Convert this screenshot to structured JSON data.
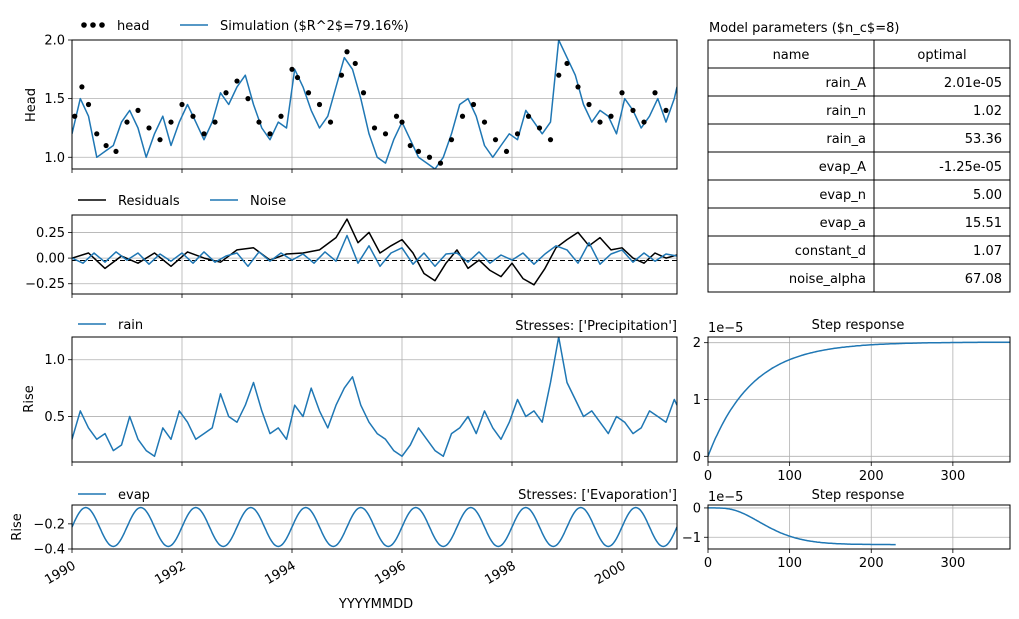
{
  "chart_data": [
    {
      "id": "head",
      "type": "line",
      "ylabel": "Head",
      "xlim": [
        1990,
        2001
      ],
      "ylim": [
        0.9,
        2.0
      ],
      "yticks": [
        1.0,
        1.5,
        2.0
      ],
      "ytick_labels": [
        "1.0",
        "1.5",
        "2.0"
      ],
      "grid": true,
      "legend": "top-left",
      "legend_entries": [
        "head",
        "Simulation ($R^2$=79.16%)"
      ],
      "series": [
        {
          "name": "head",
          "style": "scatter",
          "color": "#000000",
          "x": [
            1990.05,
            1990.18,
            1990.3,
            1990.45,
            1990.62,
            1990.8,
            1991.0,
            1991.2,
            1991.4,
            1991.6,
            1991.8,
            1992.0,
            1992.2,
            1992.4,
            1992.6,
            1992.8,
            1993.0,
            1993.2,
            1993.4,
            1993.6,
            1993.8,
            1994.0,
            1994.1,
            1994.3,
            1994.5,
            1994.7,
            1994.9,
            1995.0,
            1995.15,
            1995.3,
            1995.5,
            1995.7,
            1995.9,
            1996.0,
            1996.15,
            1996.3,
            1996.5,
            1996.7,
            1996.9,
            1997.1,
            1997.3,
            1997.5,
            1997.7,
            1997.9,
            1998.1,
            1998.3,
            1998.5,
            1998.7,
            1998.85,
            1999.0,
            1999.2,
            1999.4,
            1999.6,
            1999.8,
            2000.0,
            2000.2,
            2000.4,
            2000.6,
            2000.8
          ],
          "y": [
            1.35,
            1.6,
            1.45,
            1.2,
            1.1,
            1.05,
            1.3,
            1.4,
            1.25,
            1.15,
            1.3,
            1.45,
            1.35,
            1.2,
            1.3,
            1.55,
            1.65,
            1.5,
            1.3,
            1.2,
            1.35,
            1.75,
            1.68,
            1.55,
            1.45,
            1.3,
            1.7,
            1.9,
            1.8,
            1.55,
            1.25,
            1.2,
            1.35,
            1.3,
            1.1,
            1.05,
            1.0,
            0.95,
            1.15,
            1.35,
            1.45,
            1.3,
            1.15,
            1.05,
            1.2,
            1.35,
            1.25,
            1.15,
            1.7,
            1.8,
            1.6,
            1.45,
            1.3,
            1.35,
            1.55,
            1.4,
            1.3,
            1.55,
            1.4
          ]
        },
        {
          "name": "Simulation ($R^2$=79.16%)",
          "style": "line",
          "color": "#1f77b4",
          "x": [
            1990.0,
            1990.15,
            1990.3,
            1990.45,
            1990.6,
            1990.75,
            1990.9,
            1991.05,
            1991.2,
            1991.35,
            1991.5,
            1991.65,
            1991.8,
            1991.95,
            1992.1,
            1992.25,
            1992.4,
            1992.55,
            1992.7,
            1992.85,
            1993.0,
            1993.15,
            1993.3,
            1993.45,
            1993.6,
            1993.75,
            1993.9,
            1994.05,
            1994.2,
            1994.35,
            1994.5,
            1994.65,
            1994.8,
            1994.95,
            1995.1,
            1995.25,
            1995.4,
            1995.55,
            1995.7,
            1995.85,
            1996.0,
            1996.15,
            1996.3,
            1996.45,
            1996.6,
            1996.75,
            1996.9,
            1997.05,
            1997.2,
            1997.35,
            1997.5,
            1997.65,
            1997.8,
            1997.95,
            1998.1,
            1998.25,
            1998.4,
            1998.55,
            1998.7,
            1998.85,
            1999.0,
            1999.15,
            1999.3,
            1999.45,
            1999.6,
            1999.75,
            1999.9,
            2000.05,
            2000.2,
            2000.35,
            2000.5,
            2000.65,
            2000.8,
            2000.95,
            2001.0
          ],
          "y": [
            1.2,
            1.5,
            1.35,
            1.0,
            1.05,
            1.1,
            1.3,
            1.4,
            1.25,
            1.0,
            1.2,
            1.35,
            1.1,
            1.3,
            1.45,
            1.3,
            1.15,
            1.3,
            1.55,
            1.45,
            1.6,
            1.7,
            1.45,
            1.25,
            1.15,
            1.3,
            1.25,
            1.75,
            1.6,
            1.4,
            1.25,
            1.35,
            1.6,
            1.85,
            1.75,
            1.5,
            1.2,
            1.0,
            0.95,
            1.15,
            1.3,
            1.15,
            1.0,
            0.95,
            0.9,
            1.0,
            1.2,
            1.45,
            1.5,
            1.35,
            1.1,
            1.0,
            1.1,
            1.2,
            1.15,
            1.4,
            1.3,
            1.2,
            1.3,
            2.0,
            1.85,
            1.7,
            1.45,
            1.3,
            1.4,
            1.35,
            1.2,
            1.5,
            1.4,
            1.25,
            1.35,
            1.5,
            1.3,
            1.5,
            1.6
          ]
        }
      ]
    },
    {
      "id": "residuals",
      "type": "line",
      "xlim": [
        1990,
        2001
      ],
      "ylim": [
        -0.35,
        0.42
      ],
      "yticks": [
        -0.25,
        0.0,
        0.25
      ],
      "ytick_labels": [
        "−0.25",
        "0.00",
        "0.25"
      ],
      "grid": true,
      "legend": "top-left",
      "legend_entries": [
        "Residuals",
        "Noise"
      ],
      "series": [
        {
          "name": "Residuals",
          "color": "#000000",
          "x": [
            1990.0,
            1990.3,
            1990.6,
            1990.9,
            1991.2,
            1991.5,
            1991.8,
            1992.1,
            1992.4,
            1992.7,
            1993.0,
            1993.3,
            1993.6,
            1993.9,
            1994.2,
            1994.5,
            1994.8,
            1995.0,
            1995.2,
            1995.4,
            1995.6,
            1995.8,
            1996.0,
            1996.2,
            1996.4,
            1996.6,
            1996.8,
            1997.0,
            1997.2,
            1997.4,
            1997.6,
            1997.8,
            1998.0,
            1998.2,
            1998.4,
            1998.6,
            1998.8,
            1999.0,
            1999.2,
            1999.4,
            1999.6,
            1999.8,
            2000.0,
            2000.2,
            2000.4,
            2000.6,
            2000.8,
            2001.0
          ],
          "y": [
            0.0,
            0.05,
            -0.1,
            0.02,
            -0.05,
            0.05,
            -0.08,
            0.06,
            0.0,
            -0.04,
            0.08,
            0.1,
            -0.02,
            0.04,
            0.05,
            0.08,
            0.2,
            0.38,
            0.15,
            0.25,
            0.05,
            0.12,
            0.18,
            0.05,
            -0.15,
            -0.22,
            -0.05,
            0.08,
            -0.1,
            -0.02,
            -0.12,
            -0.18,
            -0.05,
            -0.2,
            -0.26,
            -0.1,
            0.1,
            0.18,
            0.25,
            0.12,
            0.2,
            0.08,
            0.1,
            0.0,
            -0.05,
            0.05,
            0.0,
            0.03
          ]
        },
        {
          "name": "Noise",
          "color": "#1f77b4",
          "x": [
            1990.0,
            1990.2,
            1990.4,
            1990.6,
            1990.8,
            1991.0,
            1991.2,
            1991.4,
            1991.6,
            1991.8,
            1992.0,
            1992.2,
            1992.4,
            1992.6,
            1992.8,
            1993.0,
            1993.2,
            1993.4,
            1993.6,
            1993.8,
            1994.0,
            1994.2,
            1994.4,
            1994.6,
            1994.8,
            1995.0,
            1995.2,
            1995.4,
            1995.6,
            1995.8,
            1996.0,
            1996.2,
            1996.4,
            1996.6,
            1996.8,
            1997.0,
            1997.2,
            1997.4,
            1997.6,
            1997.8,
            1998.0,
            1998.2,
            1998.4,
            1998.6,
            1998.8,
            1999.0,
            1999.2,
            1999.4,
            1999.6,
            1999.8,
            2000.0,
            2000.2,
            2000.4,
            2000.6,
            2000.8,
            2001.0
          ],
          "y": [
            0.0,
            -0.05,
            0.05,
            -0.04,
            0.06,
            -0.02,
            0.05,
            -0.06,
            0.04,
            -0.03,
            0.05,
            -0.05,
            0.06,
            -0.04,
            0.02,
            0.05,
            -0.08,
            0.06,
            -0.03,
            0.05,
            -0.02,
            0.04,
            -0.05,
            0.06,
            -0.03,
            0.22,
            -0.05,
            0.12,
            -0.08,
            0.05,
            0.1,
            -0.06,
            0.05,
            -0.08,
            0.04,
            0.05,
            -0.04,
            0.06,
            -0.05,
            0.03,
            -0.02,
            0.05,
            -0.06,
            0.04,
            0.12,
            0.08,
            -0.05,
            0.15,
            -0.06,
            0.04,
            0.08,
            -0.04,
            0.05,
            -0.03,
            0.04,
            0.02
          ]
        }
      ]
    },
    {
      "id": "rain",
      "type": "line",
      "title": "Stresses: ['Precipitation']",
      "ylabel": "Rise",
      "xlim": [
        1990,
        2001
      ],
      "ylim": [
        0.1,
        1.2
      ],
      "yticks": [
        0.5,
        1.0
      ],
      "ytick_labels": [
        "0.5",
        "1.0"
      ],
      "grid": true,
      "legend": "top-left",
      "legend_entries": [
        "rain"
      ],
      "series": [
        {
          "name": "rain",
          "color": "#1f77b4",
          "x": [
            1990.0,
            1990.15,
            1990.3,
            1990.45,
            1990.6,
            1990.75,
            1990.9,
            1991.05,
            1991.2,
            1991.35,
            1991.5,
            1991.65,
            1991.8,
            1991.95,
            1992.1,
            1992.25,
            1992.4,
            1992.55,
            1992.7,
            1992.85,
            1993.0,
            1993.15,
            1993.3,
            1993.45,
            1993.6,
            1993.75,
            1993.9,
            1994.05,
            1994.2,
            1994.35,
            1994.5,
            1994.65,
            1994.8,
            1994.95,
            1995.1,
            1995.25,
            1995.4,
            1995.55,
            1995.7,
            1995.85,
            1996.0,
            1996.15,
            1996.3,
            1996.45,
            1996.6,
            1996.75,
            1996.9,
            1997.05,
            1997.2,
            1997.35,
            1997.5,
            1997.65,
            1997.8,
            1997.95,
            1998.1,
            1998.25,
            1998.4,
            1998.55,
            1998.7,
            1998.85,
            1999.0,
            1999.15,
            1999.3,
            1999.45,
            1999.6,
            1999.75,
            1999.9,
            2000.05,
            2000.2,
            2000.35,
            2000.5,
            2000.65,
            2000.8,
            2000.95,
            2001.0
          ],
          "y": [
            0.3,
            0.55,
            0.4,
            0.3,
            0.35,
            0.2,
            0.25,
            0.5,
            0.3,
            0.2,
            0.15,
            0.4,
            0.3,
            0.55,
            0.45,
            0.3,
            0.35,
            0.4,
            0.7,
            0.5,
            0.45,
            0.6,
            0.8,
            0.55,
            0.35,
            0.4,
            0.3,
            0.6,
            0.5,
            0.75,
            0.55,
            0.4,
            0.6,
            0.75,
            0.85,
            0.6,
            0.45,
            0.35,
            0.3,
            0.2,
            0.15,
            0.25,
            0.4,
            0.3,
            0.2,
            0.15,
            0.35,
            0.4,
            0.5,
            0.35,
            0.55,
            0.4,
            0.3,
            0.45,
            0.65,
            0.5,
            0.55,
            0.45,
            0.8,
            1.2,
            0.8,
            0.65,
            0.5,
            0.55,
            0.45,
            0.35,
            0.5,
            0.45,
            0.35,
            0.4,
            0.55,
            0.5,
            0.45,
            0.65,
            0.6
          ]
        }
      ]
    },
    {
      "id": "evap",
      "type": "line",
      "title": "Stresses: ['Evaporation']",
      "ylabel": "Rise",
      "xlabel": "YYYYMMDD",
      "xlim": [
        1990,
        2001
      ],
      "ylim": [
        -0.4,
        -0.05
      ],
      "yticks": [
        -0.4,
        -0.2
      ],
      "ytick_labels": [
        "−0.4",
        "−0.2"
      ],
      "xticks": [
        1990,
        1992,
        1994,
        1996,
        1998,
        2000
      ],
      "xtick_labels": [
        "1990",
        "1992",
        "1994",
        "1996",
        "1998",
        "2000"
      ],
      "grid": true,
      "legend": "top-left",
      "legend_entries": [
        "evap"
      ],
      "series": [
        {
          "name": "evap",
          "color": "#1f77b4",
          "function": "seasonal",
          "mean": -0.225,
          "amplitude": 0.155,
          "period": 1,
          "phase": 0.25
        }
      ]
    },
    {
      "id": "step-rain",
      "type": "line",
      "title": "Step response",
      "offset_text": "1e−5",
      "xlim": [
        0,
        370
      ],
      "ylim": [
        -0.1,
        2.1
      ],
      "xticks": [
        0,
        100,
        200,
        300
      ],
      "xtick_labels": [
        "0",
        "100",
        "200",
        "300"
      ],
      "yticks": [
        0,
        1,
        2
      ],
      "ytick_labels": [
        "0",
        "1",
        "2"
      ],
      "grid": true,
      "series": [
        {
          "name": "rain",
          "color": "#1f77b4",
          "function": "exp_rise",
          "asymptote": 2.01,
          "tau": 53.36,
          "x_end": 370
        }
      ]
    },
    {
      "id": "step-evap",
      "type": "line",
      "title": "Step response",
      "offset_text": "1e−5",
      "xlim": [
        0,
        370
      ],
      "ylim": [
        -1.4,
        0.1
      ],
      "xticks": [
        0,
        100,
        200,
        300
      ],
      "xtick_labels": [
        "0",
        "100",
        "200",
        "300"
      ],
      "yticks": [
        -1,
        0
      ],
      "ytick_labels": [
        "−1",
        "0"
      ],
      "grid": true,
      "series": [
        {
          "name": "evap",
          "color": "#1f77b4",
          "function": "gamma_fall",
          "asymptote": -1.25,
          "n": 5.0,
          "a": 15.51,
          "x_end": 230
        }
      ]
    }
  ],
  "table": {
    "title": "Model parameters ($n_c$=8)",
    "columns": [
      "name",
      "optimal"
    ],
    "rows": [
      [
        "rain_A",
        "2.01e-05"
      ],
      [
        "rain_n",
        "1.02"
      ],
      [
        "rain_a",
        "53.36"
      ],
      [
        "evap_A",
        "-1.25e-05"
      ],
      [
        "evap_n",
        "5.00"
      ],
      [
        "evap_a",
        "15.51"
      ],
      [
        "constant_d",
        "1.07"
      ],
      [
        "noise_alpha",
        "67.08"
      ]
    ]
  }
}
